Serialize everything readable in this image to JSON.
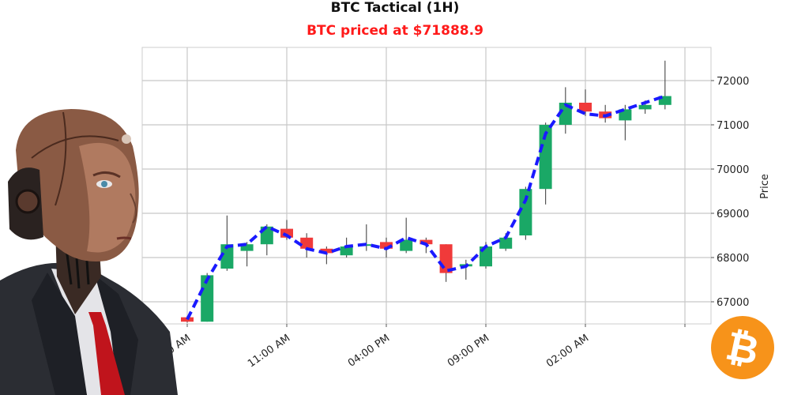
{
  "chart_data": {
    "type": "candlestick",
    "title": "BTC Tactical (1H)",
    "subtitle": "BTC priced at $71888.9",
    "ylabel": "Price",
    "xlabel": "",
    "ylim": [
      66500,
      72750
    ],
    "yticks": [
      67000,
      68000,
      69000,
      70000,
      71000,
      72000
    ],
    "xticks": [
      {
        "index": 0,
        "label": "06:00 AM"
      },
      {
        "index": 5,
        "label": "11:00 AM"
      },
      {
        "index": 10,
        "label": "04:00 PM"
      },
      {
        "index": 15,
        "label": "09:00 PM"
      },
      {
        "index": 20,
        "label": "02:00 AM"
      }
    ],
    "grid": true,
    "colors": {
      "up": "#1aa866",
      "down": "#f03a3a",
      "ma": "#1a1aff",
      "wick": "#555555"
    },
    "candles": [
      {
        "open": 66650,
        "high": 66680,
        "low": 66530,
        "close": 66550
      },
      {
        "open": 66550,
        "high": 67650,
        "low": 66550,
        "close": 67600
      },
      {
        "open": 67750,
        "high": 68950,
        "low": 67700,
        "close": 68300
      },
      {
        "open": 68150,
        "high": 68350,
        "low": 67800,
        "close": 68300
      },
      {
        "open": 68300,
        "high": 68750,
        "low": 68050,
        "close": 68700
      },
      {
        "open": 68650,
        "high": 68850,
        "low": 68400,
        "close": 68450
      },
      {
        "open": 68450,
        "high": 68550,
        "low": 68000,
        "close": 68200
      },
      {
        "open": 68200,
        "high": 68250,
        "low": 67850,
        "close": 68100
      },
      {
        "open": 68050,
        "high": 68450,
        "low": 68000,
        "close": 68250
      },
      {
        "open": 68300,
        "high": 68750,
        "low": 68150,
        "close": 68300
      },
      {
        "open": 68350,
        "high": 68450,
        "low": 68000,
        "close": 68200
      },
      {
        "open": 68150,
        "high": 68900,
        "low": 68100,
        "close": 68400
      },
      {
        "open": 68400,
        "high": 68450,
        "low": 68100,
        "close": 68300
      },
      {
        "open": 68300,
        "high": 68300,
        "low": 67450,
        "close": 67650
      },
      {
        "open": 67800,
        "high": 67950,
        "low": 67500,
        "close": 67850
      },
      {
        "open": 67800,
        "high": 68350,
        "low": 67750,
        "close": 68250
      },
      {
        "open": 68200,
        "high": 68550,
        "low": 68150,
        "close": 68450
      },
      {
        "open": 68500,
        "high": 69600,
        "low": 68400,
        "close": 69550
      },
      {
        "open": 69550,
        "high": 71050,
        "low": 69200,
        "close": 71000
      },
      {
        "open": 71000,
        "high": 71850,
        "low": 70800,
        "close": 71500
      },
      {
        "open": 71500,
        "high": 71800,
        "low": 71200,
        "close": 71300
      },
      {
        "open": 71300,
        "high": 71450,
        "low": 71050,
        "close": 71150
      },
      {
        "open": 71100,
        "high": 71450,
        "low": 70650,
        "close": 71350
      },
      {
        "open": 71350,
        "high": 71550,
        "low": 71250,
        "close": 71450
      },
      {
        "open": 71450,
        "high": 72450,
        "low": 71350,
        "close": 71650
      }
    ],
    "ma_line": [
      66600,
      67500,
      68250,
      68300,
      68700,
      68500,
      68200,
      68100,
      68250,
      68300,
      68200,
      68450,
      68300,
      67700,
      67800,
      68250,
      68450,
      69300,
      70800,
      71450,
      71250,
      71200,
      71350,
      71500,
      71650
    ]
  },
  "decorations": {
    "left_image": "humanoid-robot-businessman",
    "bottom_right_icon": "bitcoin-icon",
    "bitcoin_color": "#f7931a"
  }
}
